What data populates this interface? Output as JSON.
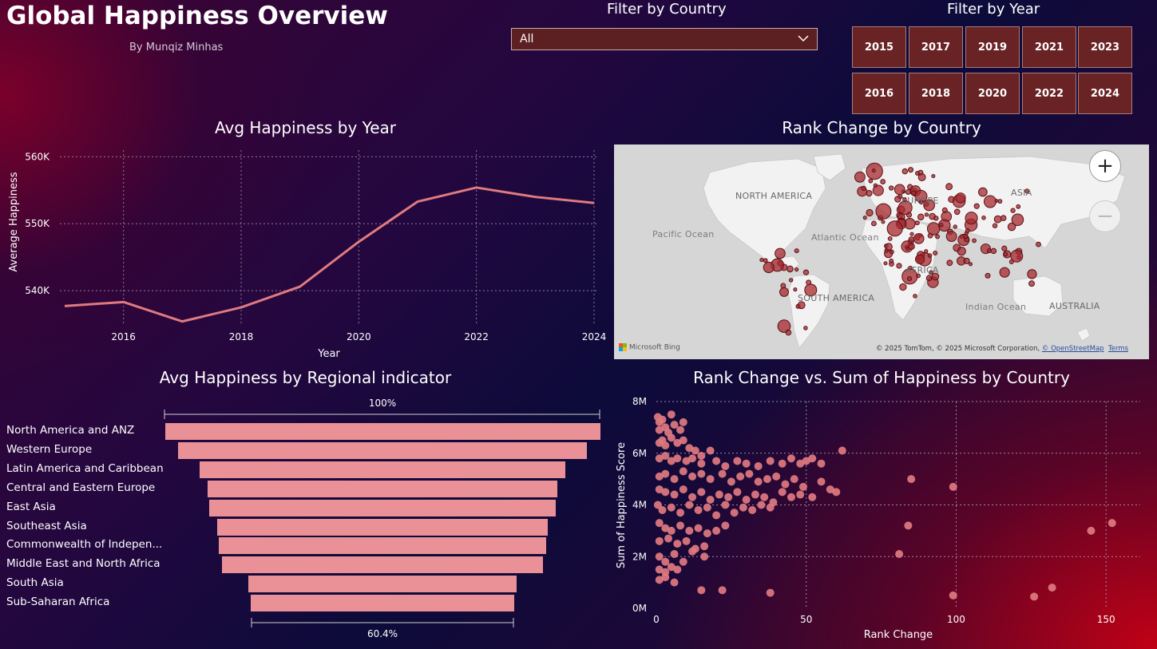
{
  "header": {
    "title": "Global Happiness Overview",
    "subtitle": "By Munqiz Minhas"
  },
  "filters": {
    "country_label": "Filter by Country",
    "country_value": "All",
    "year_label": "Filter by Year",
    "years_row1": [
      "2015",
      "2017",
      "2019",
      "2021",
      "2023"
    ],
    "years_row2": [
      "2016",
      "2018",
      "2020",
      "2022",
      "2024"
    ]
  },
  "map": {
    "title": "Rank Change by Country",
    "labels": {
      "north_america": "NORTH AMERICA",
      "asia": "ASIA",
      "europe": "EUROPE",
      "africa": "AFRICA",
      "south_america": "SOUTH AMERICA",
      "australia": "AUSTRALIA",
      "pacific": "Pacific Ocean",
      "atlantic": "Atlantic Ocean",
      "indian": "Indian Ocean"
    },
    "zoom_in": "+",
    "zoom_out": "−",
    "logo": "Microsoft Bing",
    "attribution_text": "© 2025 TomTom, © 2025 Microsoft Corporation,",
    "attribution_osm": "© OpenStreetMap",
    "attribution_terms": "Terms"
  },
  "colors": {
    "accent": "#e07a80",
    "bar": "#e99197",
    "button": "#6a2325",
    "marker": "#a5282d"
  },
  "chart_data": [
    {
      "type": "line",
      "title": "Avg Happiness by Year",
      "xlabel": "Year",
      "ylabel": "Average Happiness",
      "x": [
        2015,
        2016,
        2017,
        2018,
        2019,
        2020,
        2021,
        2022,
        2023,
        2024
      ],
      "y": [
        537700,
        538300,
        535400,
        537500,
        540600,
        547300,
        553300,
        555400,
        554000,
        553100
      ],
      "xticks": [
        "2016",
        "2018",
        "2020",
        "2022",
        "2024"
      ],
      "yticks": [
        "540K",
        "550K",
        "560K"
      ],
      "ylim": [
        535000,
        561000
      ],
      "grid": true
    },
    {
      "type": "bar",
      "title": "Avg Happiness by Regional indicator",
      "categories": [
        "North America and ANZ",
        "Western Europe",
        "Latin America and Caribbean",
        "Central and Eastern Europe",
        "East Asia",
        "Southeast Asia",
        "Commonwealth of Indepen...",
        "Middle East and North Africa",
        "South Asia",
        "Sub-Saharan Africa"
      ],
      "values": [
        100,
        94.0,
        84.0,
        80.5,
        79.8,
        75.8,
        75.2,
        73.7,
        61.5,
        60.4
      ],
      "top_label": "100%",
      "bottom_label": "60.4%"
    },
    {
      "type": "scatter",
      "title": "Rank Change vs. Sum of Happiness by Country",
      "xlabel": "Rank Change",
      "ylabel": "Sum of Happiness Score",
      "xlim": [
        0,
        155
      ],
      "ylim": [
        0,
        8
      ],
      "xticks": [
        "0",
        "50",
        "100",
        "150"
      ],
      "yticks": [
        "0M",
        "2M",
        "4M",
        "6M",
        "8M"
      ],
      "grid": true,
      "points": [
        [
          0.5,
          7.4
        ],
        [
          1,
          7.2
        ],
        [
          2,
          7.3
        ],
        [
          3,
          7.0
        ],
        [
          5,
          7.5
        ],
        [
          1,
          6.9
        ],
        [
          4,
          6.8
        ],
        [
          6,
          7.1
        ],
        [
          8,
          6.9
        ],
        [
          9,
          7.2
        ],
        [
          1,
          6.4
        ],
        [
          2,
          6.5
        ],
        [
          3,
          6.3
        ],
        [
          5,
          6.6
        ],
        [
          7,
          6.4
        ],
        [
          9,
          6.5
        ],
        [
          11,
          6.2
        ],
        [
          13,
          6.1
        ],
        [
          15,
          5.9
        ],
        [
          18,
          6.1
        ],
        [
          1,
          5.8
        ],
        [
          3,
          5.9
        ],
        [
          5,
          5.7
        ],
        [
          7,
          5.8
        ],
        [
          10,
          5.7
        ],
        [
          12,
          5.8
        ],
        [
          15,
          5.6
        ],
        [
          20,
          5.7
        ],
        [
          23,
          5.5
        ],
        [
          27,
          5.7
        ],
        [
          30,
          5.6
        ],
        [
          34,
          5.5
        ],
        [
          38,
          5.7
        ],
        [
          42,
          5.6
        ],
        [
          45,
          5.8
        ],
        [
          48,
          5.6
        ],
        [
          50,
          5.7
        ],
        [
          52,
          5.8
        ],
        [
          55,
          5.6
        ],
        [
          62,
          6.1
        ],
        [
          1,
          5.1
        ],
        [
          3,
          5.2
        ],
        [
          6,
          5.0
        ],
        [
          9,
          5.3
        ],
        [
          12,
          5.1
        ],
        [
          15,
          5.2
        ],
        [
          18,
          5.0
        ],
        [
          22,
          5.2
        ],
        [
          25,
          4.9
        ],
        [
          28,
          5.1
        ],
        [
          31,
          5.2
        ],
        [
          34,
          4.9
        ],
        [
          37,
          5.0
        ],
        [
          40,
          5.1
        ],
        [
          43,
          4.8
        ],
        [
          46,
          5.0
        ],
        [
          49,
          4.7
        ],
        [
          55,
          4.9
        ],
        [
          58,
          4.6
        ],
        [
          60,
          4.5
        ],
        [
          1,
          4.6
        ],
        [
          3,
          4.5
        ],
        [
          6,
          4.4
        ],
        [
          9,
          4.6
        ],
        [
          12,
          4.3
        ],
        [
          15,
          4.5
        ],
        [
          18,
          4.2
        ],
        [
          21,
          4.4
        ],
        [
          24,
          4.3
        ],
        [
          27,
          4.5
        ],
        [
          30,
          4.2
        ],
        [
          33,
          4.4
        ],
        [
          36,
          4.3
        ],
        [
          39,
          4.1
        ],
        [
          42,
          4.5
        ],
        [
          45,
          4.3
        ],
        [
          48,
          4.4
        ],
        [
          52,
          4.3
        ],
        [
          0.5,
          4.0
        ],
        [
          2,
          3.8
        ],
        [
          5,
          3.9
        ],
        [
          8,
          3.7
        ],
        [
          11,
          4.0
        ],
        [
          14,
          3.8
        ],
        [
          17,
          3.9
        ],
        [
          20,
          3.6
        ],
        [
          23,
          4.0
        ],
        [
          26,
          3.7
        ],
        [
          29,
          3.9
        ],
        [
          32,
          3.8
        ],
        [
          35,
          4.0
        ],
        [
          38,
          3.9
        ],
        [
          1,
          3.3
        ],
        [
          3,
          3.1
        ],
        [
          5,
          3.0
        ],
        [
          8,
          3.2
        ],
        [
          11,
          3.0
        ],
        [
          14,
          3.1
        ],
        [
          17,
          2.9
        ],
        [
          20,
          3.0
        ],
        [
          23,
          3.2
        ],
        [
          1,
          2.6
        ],
        [
          4,
          2.7
        ],
        [
          7,
          2.5
        ],
        [
          10,
          2.6
        ],
        [
          13,
          2.3
        ],
        [
          16,
          2.4
        ],
        [
          1,
          2.0
        ],
        [
          3,
          1.8
        ],
        [
          6,
          2.1
        ],
        [
          9,
          1.8
        ],
        [
          12,
          2.2
        ],
        [
          16,
          2.0
        ],
        [
          1,
          1.5
        ],
        [
          3,
          1.4
        ],
        [
          5,
          1.6
        ],
        [
          7,
          1.5
        ],
        [
          1,
          1.1
        ],
        [
          3,
          1.2
        ],
        [
          6,
          1.0
        ],
        [
          15,
          0.7
        ],
        [
          22,
          0.7
        ],
        [
          38,
          0.6
        ],
        [
          85,
          5.0
        ],
        [
          99,
          4.7
        ],
        [
          84,
          3.2
        ],
        [
          81,
          2.1
        ],
        [
          145,
          3.0
        ],
        [
          152,
          3.3
        ],
        [
          99,
          0.5
        ],
        [
          126,
          0.45
        ],
        [
          132,
          0.8
        ]
      ]
    }
  ]
}
